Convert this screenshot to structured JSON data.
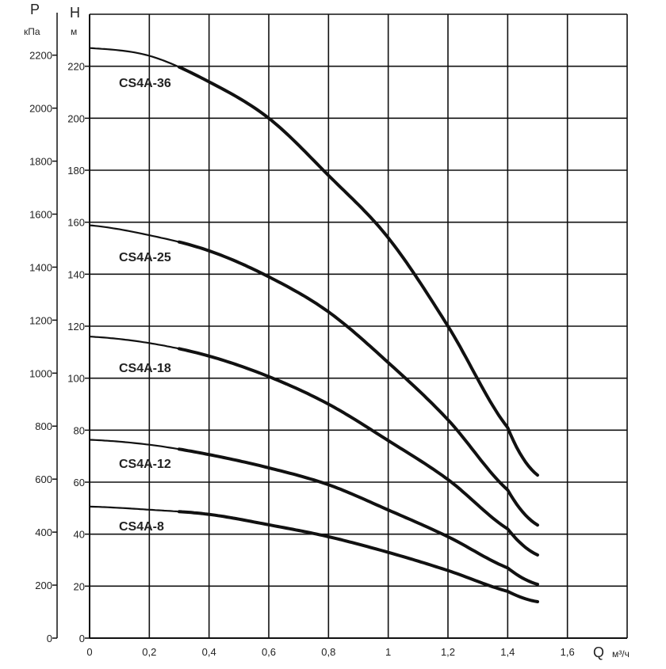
{
  "chart_data": {
    "type": "line",
    "title": "",
    "xlabel": "Q",
    "xunit": "м³/ч",
    "ylabel": "H",
    "yunit": "м",
    "y2label": "P",
    "y2unit": "кПа",
    "xlim": [
      0,
      1.8
    ],
    "ylim": [
      0,
      240
    ],
    "grid": true,
    "x_ticks": [
      "0",
      "0,2",
      "0,4",
      "0,6",
      "0,8",
      "1",
      "1,2",
      "1,4",
      "1,6"
    ],
    "x_tick_values": [
      0,
      0.2,
      0.4,
      0.6,
      0.8,
      1.0,
      1.2,
      1.4,
      1.6
    ],
    "y_ticks": [
      "0",
      "20",
      "40",
      "60",
      "80",
      "100",
      "120",
      "140",
      "160",
      "180",
      "200",
      "220"
    ],
    "y_tick_values": [
      0,
      20,
      40,
      60,
      80,
      100,
      120,
      140,
      160,
      180,
      200,
      220
    ],
    "p_ticks": [
      "0",
      "200",
      "400",
      "600",
      "800",
      "1000",
      "1200",
      "1400",
      "1600",
      "1800",
      "2000",
      "2200"
    ],
    "p_tick_values": [
      0,
      200,
      400,
      600,
      800,
      1000,
      1200,
      1400,
      1600,
      1800,
      2000,
      2200
    ],
    "p_per_m": 9.81,
    "operating_range_start": 0.3,
    "x": [
      0,
      0.2,
      0.4,
      0.6,
      0.8,
      1.0,
      1.2,
      1.4,
      1.5
    ],
    "series": [
      {
        "name": "CS4A-36",
        "values": [
          227,
          224,
          214,
          200,
          178,
          154,
          120,
          81,
          62.7
        ]
      },
      {
        "name": "CS4A-25",
        "values": [
          158.8,
          155,
          149,
          139,
          125.5,
          106,
          84,
          57,
          43.5
        ]
      },
      {
        "name": "CS4A-18",
        "values": [
          116,
          113.5,
          108.5,
          100.6,
          90,
          76,
          61,
          42,
          32
        ]
      },
      {
        "name": "CS4A-12",
        "values": [
          76.3,
          74.4,
          70.6,
          65.5,
          59,
          49.3,
          39,
          27,
          20.7
        ]
      },
      {
        "name": "CS4A-8",
        "values": [
          50.6,
          49.4,
          47.6,
          43.6,
          39,
          33,
          26,
          18,
          14
        ]
      }
    ]
  }
}
